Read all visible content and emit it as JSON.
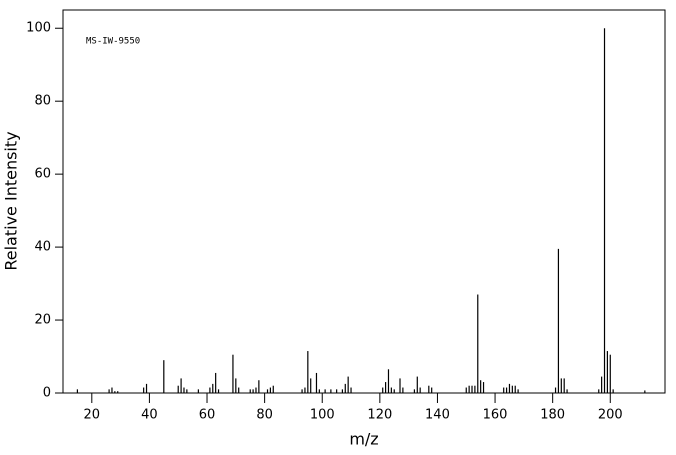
{
  "chart_data": {
    "type": "stem",
    "annotation": "MS-IW-9550",
    "x_label": "m/z",
    "y_label": "Relative Intensity",
    "color": "#000000",
    "xlim": [
      10,
      219
    ],
    "ylim": [
      0,
      105
    ],
    "xticks": [
      20,
      40,
      60,
      80,
      100,
      120,
      140,
      160,
      180,
      200
    ],
    "yticks": [
      0,
      20,
      40,
      60,
      80,
      100
    ],
    "x": [
      15,
      26,
      27,
      28,
      29,
      38,
      39,
      45,
      50,
      51,
      52,
      53,
      57,
      61,
      62,
      63,
      64,
      69,
      70,
      71,
      75,
      76,
      77,
      78,
      81,
      82,
      83,
      93,
      94,
      95,
      96,
      98,
      99,
      101,
      103,
      105,
      107,
      108,
      109,
      110,
      121,
      122,
      123,
      124,
      125,
      127,
      128,
      132,
      133,
      134,
      137,
      138,
      150,
      151,
      152,
      153,
      154,
      155,
      156,
      163,
      164,
      165,
      166,
      167,
      168,
      181,
      182,
      183,
      184,
      185,
      196,
      197,
      198,
      199,
      200,
      201,
      212
    ],
    "values": [
      1,
      1,
      1.5,
      0.5,
      0.5,
      1.5,
      2.5,
      9,
      2,
      4,
      1.5,
      1,
      1,
      1.5,
      2.5,
      5.5,
      1,
      10.5,
      4,
      1.5,
      1,
      1,
      1.5,
      3.5,
      1,
      1.5,
      2,
      1,
      1.5,
      11.5,
      4,
      5.5,
      1,
      1,
      1,
      1,
      1,
      2.5,
      4.5,
      1.5,
      1.5,
      3,
      6.5,
      1.5,
      1,
      4,
      1.5,
      1,
      4.5,
      1.5,
      2,
      1.5,
      1.5,
      2,
      2,
      2,
      27,
      3.5,
      3,
      1.5,
      1.5,
      2.5,
      2,
      2,
      1,
      1.5,
      39.5,
      4,
      4,
      1,
      1,
      4.5,
      100,
      11.5,
      10.5,
      1,
      0.7
    ]
  }
}
